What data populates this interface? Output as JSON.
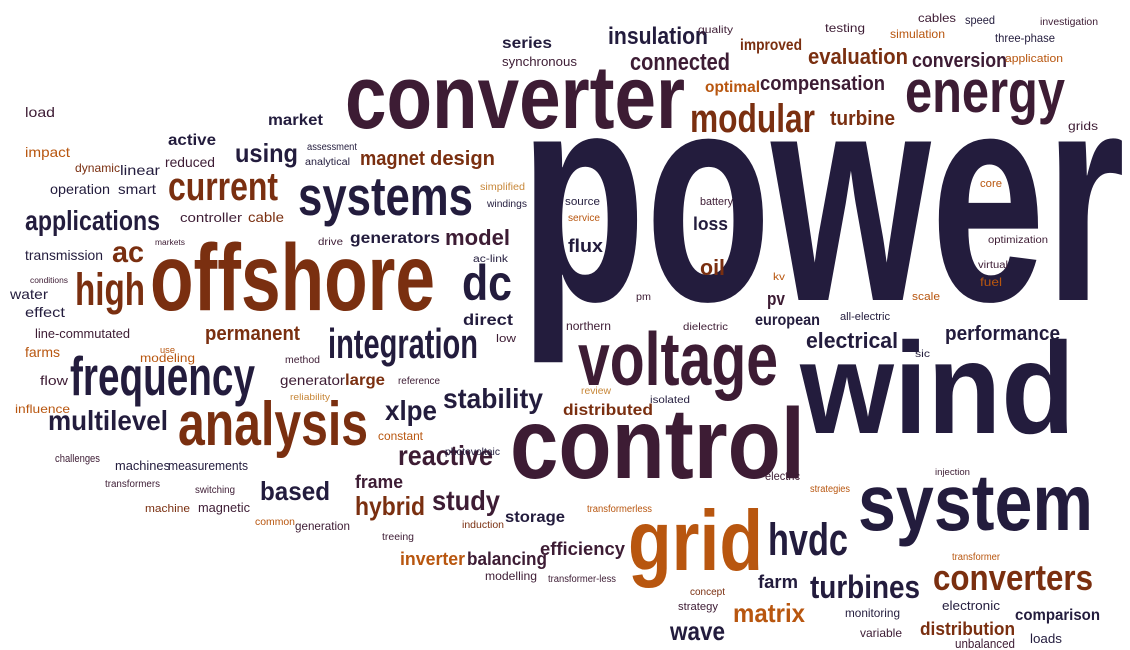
{
  "words": [
    "power",
    "wind",
    "converter",
    "control",
    "offshore",
    "system",
    "voltage",
    "grid",
    "energy",
    "analysis",
    "frequency",
    "systems",
    "integration",
    "modular",
    "hvdc",
    "dc",
    "high",
    "current",
    "converters",
    "turbines",
    "applications",
    "multilevel",
    "stability",
    "reactive",
    "based",
    "study",
    "hybrid",
    "xlpe",
    "ac",
    "model",
    "using",
    "connected",
    "insulation",
    "evaluation",
    "compensation",
    "conversion",
    "turbine",
    "magnet",
    "design",
    "electrical",
    "performance",
    "permanent",
    "generators",
    "matrix",
    "wave",
    "inverter",
    "balancing",
    "efficiency",
    "storage",
    "distribution",
    "comparison",
    "farm",
    "flux",
    "loss",
    "oil",
    "pv",
    "european",
    "direct",
    "distributed",
    "frame",
    "large",
    "generator",
    "series",
    "synchronous",
    "improved",
    "optimal",
    "market",
    "active",
    "reduced",
    "linear",
    "smart",
    "operation",
    "dynamic",
    "impact",
    "load",
    "controller",
    "cable",
    "transmission",
    "water",
    "effect",
    "line-commutated",
    "farms",
    "flow",
    "influence",
    "challenges",
    "machines",
    "measurements",
    "transformers",
    "machine",
    "magnetic",
    "switching",
    "common",
    "generation",
    "modeling",
    "use",
    "method",
    "reliability",
    "reference",
    "constant",
    "photovoltaic",
    "assessment",
    "analytical",
    "simplified",
    "windings",
    "source",
    "service",
    "drive",
    "ac-link",
    "low",
    "northern",
    "dielectric",
    "pm",
    "review",
    "isolated",
    "induction",
    "treeing",
    "transformerless",
    "modelling",
    "transformer-less",
    "concept",
    "strategy",
    "electric",
    "strategies",
    "monitoring",
    "variable",
    "electronic",
    "loads",
    "unbalanced",
    "transformer",
    "injection",
    "sic",
    "scale",
    "all-electric",
    "fuel",
    "virtual",
    "optimization",
    "core",
    "battery",
    "kv",
    "grids",
    "three-phase",
    "application",
    "investigation",
    "speed",
    "cables",
    "simulation",
    "testing",
    "quality",
    "markets",
    "conditions"
  ]
}
